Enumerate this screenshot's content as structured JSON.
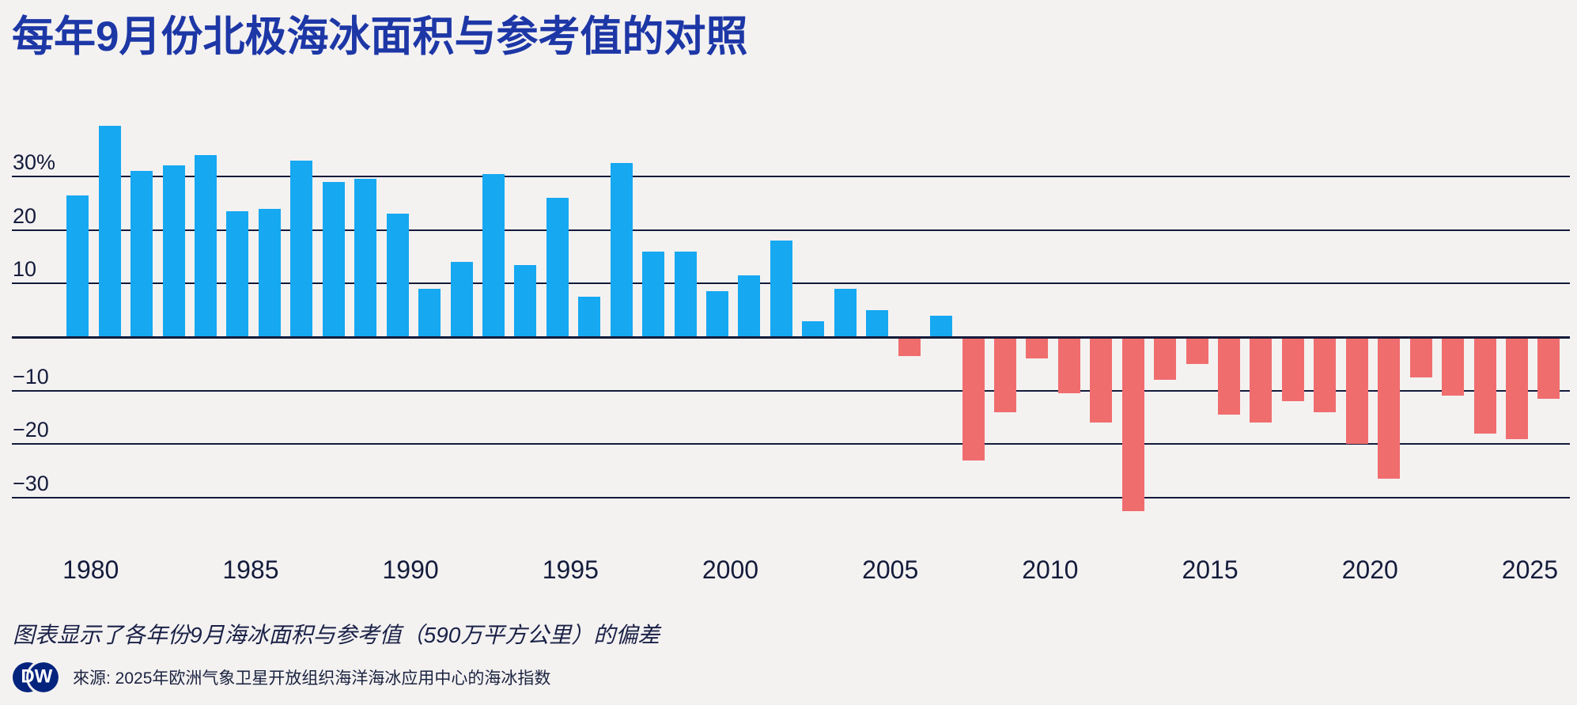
{
  "header": {
    "title": "每年9月份北极海冰面积与参考值的对照"
  },
  "footer": {
    "note": "图表显示了各年份9月海冰面积与参考值（590万平方公里）的偏差",
    "source": "來源: 2025年欧洲气象卫星开放组织海洋海冰应用中心的海冰指数",
    "logo_d": "D",
    "logo_w": "W"
  },
  "chart_data": {
    "type": "bar",
    "title": "每年9月份北极海冰面积与参考值的对照",
    "xlabel": "",
    "ylabel": "",
    "unit": "%",
    "reference_value": "590万平方公里",
    "x": [
      1979,
      1980,
      1981,
      1982,
      1983,
      1984,
      1985,
      1986,
      1987,
      1988,
      1989,
      1990,
      1991,
      1992,
      1993,
      1994,
      1995,
      1996,
      1997,
      1998,
      1999,
      2000,
      2001,
      2002,
      2003,
      2004,
      2005,
      2006,
      2007,
      2008,
      2009,
      2010,
      2011,
      2012,
      2013,
      2014,
      2015,
      2016,
      2017,
      2018,
      2019,
      2020,
      2021,
      2022,
      2023,
      2024,
      2025
    ],
    "values": [
      26.5,
      39.5,
      31,
      32,
      34,
      23.5,
      24,
      33,
      29,
      29.5,
      23,
      9,
      14,
      30.5,
      13.5,
      26,
      7.5,
      32.5,
      16,
      16,
      8.5,
      11.5,
      18,
      3,
      9,
      5,
      -3.5,
      4,
      -23,
      -14,
      -4,
      -10.5,
      -16,
      -32.5,
      -8,
      -5,
      -14.5,
      -16,
      -12,
      -14,
      -20,
      -26.5,
      -7.5,
      -11,
      -18,
      -19,
      -11.5
    ],
    "ylim": [
      -36,
      42
    ],
    "grid": true,
    "legend_position": "none",
    "y_gridlines": [
      {
        "value": 30,
        "label": "30%"
      },
      {
        "value": 20,
        "label": "20"
      },
      {
        "value": 10,
        "label": "10"
      },
      {
        "value": 0,
        "label": ""
      },
      {
        "value": -10,
        "label": "−10"
      },
      {
        "value": -20,
        "label": "−20"
      },
      {
        "value": -30,
        "label": "−30"
      }
    ],
    "x_ticks": [
      1980,
      1985,
      1990,
      1995,
      2000,
      2005,
      2010,
      2015,
      2020,
      2025
    ],
    "colors": {
      "positive": "#16a8f1",
      "negative": "#f06d6e",
      "gridline": "#141b3b",
      "zero_line": "#141b3b",
      "background": "#f4f2f1",
      "title": "#1d37a6",
      "logo": "#04237d"
    }
  }
}
